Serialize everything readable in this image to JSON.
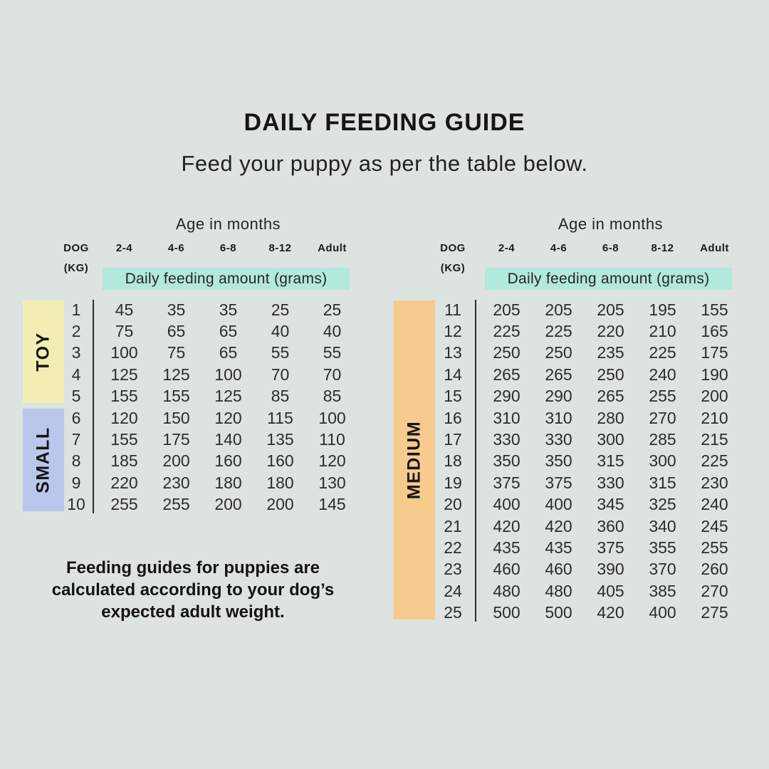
{
  "title": "DAILY FEEDING GUIDE",
  "subtitle": "Feed your puppy as per the table below.",
  "note": "Feeding guides for puppies are calculated according to your dog’s expected adult weight.",
  "colors": {
    "background": "#dce3e1",
    "band": "#b3e8dc",
    "toy": "#f2eeb3",
    "small": "#b9c8ea",
    "medium": "#f7ca8e",
    "divider": "#2e2e2c"
  },
  "tables": [
    {
      "id": "toy-small",
      "age_header": "Age in months",
      "dog_label": "DOG",
      "dog_unit": "(KG)",
      "age_columns": [
        "2-4",
        "4-6",
        "6-8",
        "8-12",
        "Adult"
      ],
      "band_label": "Daily feeding amount (grams)",
      "groups": [
        {
          "label": "TOY",
          "color": "#f2eeb3",
          "rows": [
            {
              "kg": "1",
              "values": [
                "45",
                "35",
                "35",
                "25",
                "25"
              ]
            },
            {
              "kg": "2",
              "values": [
                "75",
                "65",
                "65",
                "40",
                "40"
              ]
            },
            {
              "kg": "3",
              "values": [
                "100",
                "75",
                "65",
                "55",
                "55"
              ]
            },
            {
              "kg": "4",
              "values": [
                "125",
                "125",
                "100",
                "70",
                "70"
              ]
            },
            {
              "kg": "5",
              "values": [
                "155",
                "155",
                "125",
                "85",
                "85"
              ]
            }
          ]
        },
        {
          "label": "SMALL",
          "color": "#b9c8ea",
          "rows": [
            {
              "kg": "6",
              "values": [
                "120",
                "150",
                "120",
                "115",
                "100"
              ]
            },
            {
              "kg": "7",
              "values": [
                "155",
                "175",
                "140",
                "135",
                "110"
              ]
            },
            {
              "kg": "8",
              "values": [
                "185",
                "200",
                "160",
                "160",
                "120"
              ]
            },
            {
              "kg": "9",
              "values": [
                "220",
                "230",
                "180",
                "180",
                "130"
              ]
            },
            {
              "kg": "10",
              "values": [
                "255",
                "255",
                "200",
                "200",
                "145"
              ]
            }
          ]
        }
      ]
    },
    {
      "id": "medium",
      "age_header": "Age in months",
      "dog_label": "DOG",
      "dog_unit": "(KG)",
      "age_columns": [
        "2-4",
        "4-6",
        "6-8",
        "8-12",
        "Adult"
      ],
      "band_label": "Daily feeding amount (grams)",
      "groups": [
        {
          "label": "MEDIUM",
          "color": "#f7ca8e",
          "rows": [
            {
              "kg": "11",
              "values": [
                "205",
                "205",
                "205",
                "195",
                "155"
              ]
            },
            {
              "kg": "12",
              "values": [
                "225",
                "225",
                "220",
                "210",
                "165"
              ]
            },
            {
              "kg": "13",
              "values": [
                "250",
                "250",
                "235",
                "225",
                "175"
              ]
            },
            {
              "kg": "14",
              "values": [
                "265",
                "265",
                "250",
                "240",
                "190"
              ]
            },
            {
              "kg": "15",
              "values": [
                "290",
                "290",
                "265",
                "255",
                "200"
              ]
            },
            {
              "kg": "16",
              "values": [
                "310",
                "310",
                "280",
                "270",
                "210"
              ]
            },
            {
              "kg": "17",
              "values": [
                "330",
                "330",
                "300",
                "285",
                "215"
              ]
            },
            {
              "kg": "18",
              "values": [
                "350",
                "350",
                "315",
                "300",
                "225"
              ]
            },
            {
              "kg": "19",
              "values": [
                "375",
                "375",
                "330",
                "315",
                "230"
              ]
            },
            {
              "kg": "20",
              "values": [
                "400",
                "400",
                "345",
                "325",
                "240"
              ]
            },
            {
              "kg": "21",
              "values": [
                "420",
                "420",
                "360",
                "340",
                "245"
              ]
            },
            {
              "kg": "22",
              "values": [
                "435",
                "435",
                "375",
                "355",
                "255"
              ]
            },
            {
              "kg": "23",
              "values": [
                "460",
                "460",
                "390",
                "370",
                "260"
              ]
            },
            {
              "kg": "24",
              "values": [
                "480",
                "480",
                "405",
                "385",
                "270"
              ]
            },
            {
              "kg": "25",
              "values": [
                "500",
                "500",
                "420",
                "400",
                "275"
              ]
            }
          ]
        }
      ]
    }
  ]
}
